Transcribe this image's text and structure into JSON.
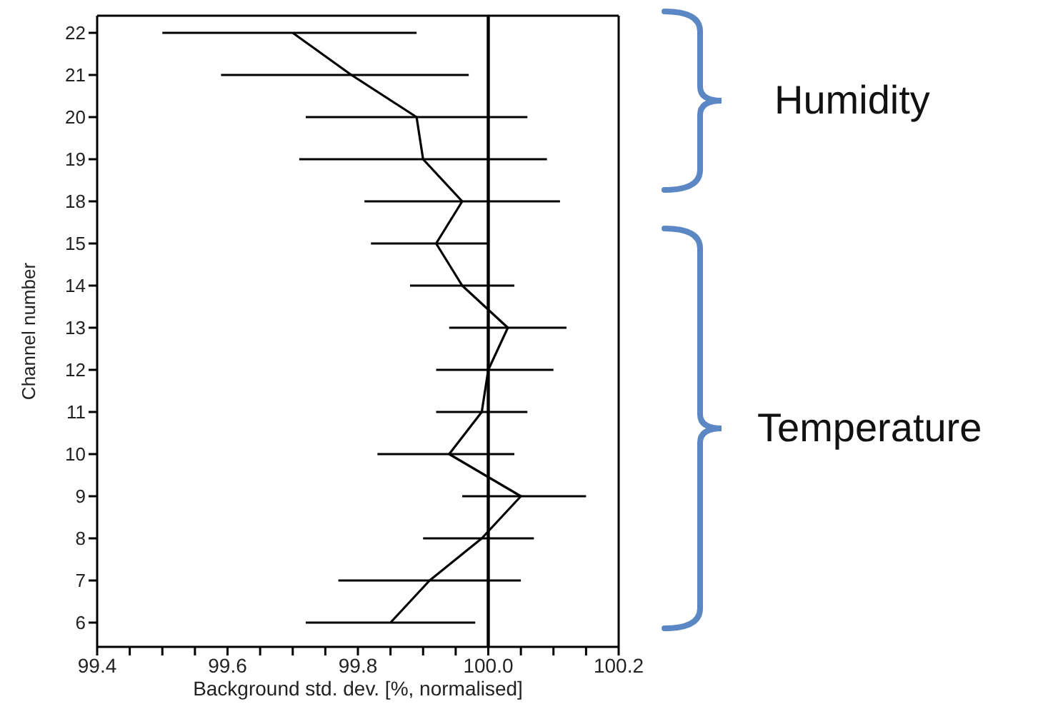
{
  "chart_data": {
    "type": "line",
    "orientation": "horizontal",
    "xlabel": "Background std. dev. [%, normalised]",
    "ylabel": "Channel number",
    "categories": [
      "22",
      "21",
      "20",
      "19",
      "18",
      "15",
      "14",
      "13",
      "12",
      "11",
      "10",
      "9",
      "8",
      "7",
      "6"
    ],
    "series": [
      {
        "color": "#000000",
        "values": [
          99.7,
          99.79,
          99.89,
          99.9,
          99.96,
          99.92,
          99.96,
          100.03,
          100.0,
          99.99,
          99.94,
          100.05,
          99.99,
          99.91,
          99.85
        ],
        "errors": [
          [
            99.5,
            99.89
          ],
          [
            99.59,
            99.97
          ],
          [
            99.72,
            100.06
          ],
          [
            99.71,
            100.09
          ],
          [
            99.81,
            100.11
          ],
          [
            99.82,
            100.0
          ],
          [
            99.88,
            100.04
          ],
          [
            99.94,
            100.12
          ],
          [
            99.92,
            100.1
          ],
          [
            99.92,
            100.06
          ],
          [
            99.83,
            100.04
          ],
          [
            99.96,
            100.15
          ],
          [
            99.9,
            100.07
          ],
          [
            99.77,
            100.05
          ],
          [
            99.72,
            99.98
          ]
        ]
      }
    ],
    "xlim": [
      99.4,
      100.2
    ],
    "xticks": [
      99.4,
      {
        "value": 99.45,
        "label": null
      },
      {
        "value": 99.5,
        "label": null
      },
      {
        "value": 99.55,
        "label": null
      },
      99.6,
      {
        "value": 99.65,
        "label": null
      },
      {
        "value": 99.7,
        "label": null
      },
      {
        "value": 99.75,
        "label": null
      },
      99.8,
      {
        "value": 99.85,
        "label": null
      },
      {
        "value": 99.9,
        "label": null
      },
      {
        "value": 99.95,
        "label": null
      },
      {
        "value": 100.0,
        "label": "100.0"
      },
      {
        "value": 100.05,
        "label": null
      },
      {
        "value": 100.1,
        "label": null
      },
      {
        "value": 100.15,
        "label": null
      },
      100.2
    ],
    "ref_lines": [
      {
        "axis": "x",
        "value": 100.0,
        "color": "#000000"
      }
    ],
    "annotations": [
      "Humidity",
      "Temperature"
    ],
    "grid": false,
    "legend": false,
    "marker": "none",
    "line_style": "solid"
  }
}
